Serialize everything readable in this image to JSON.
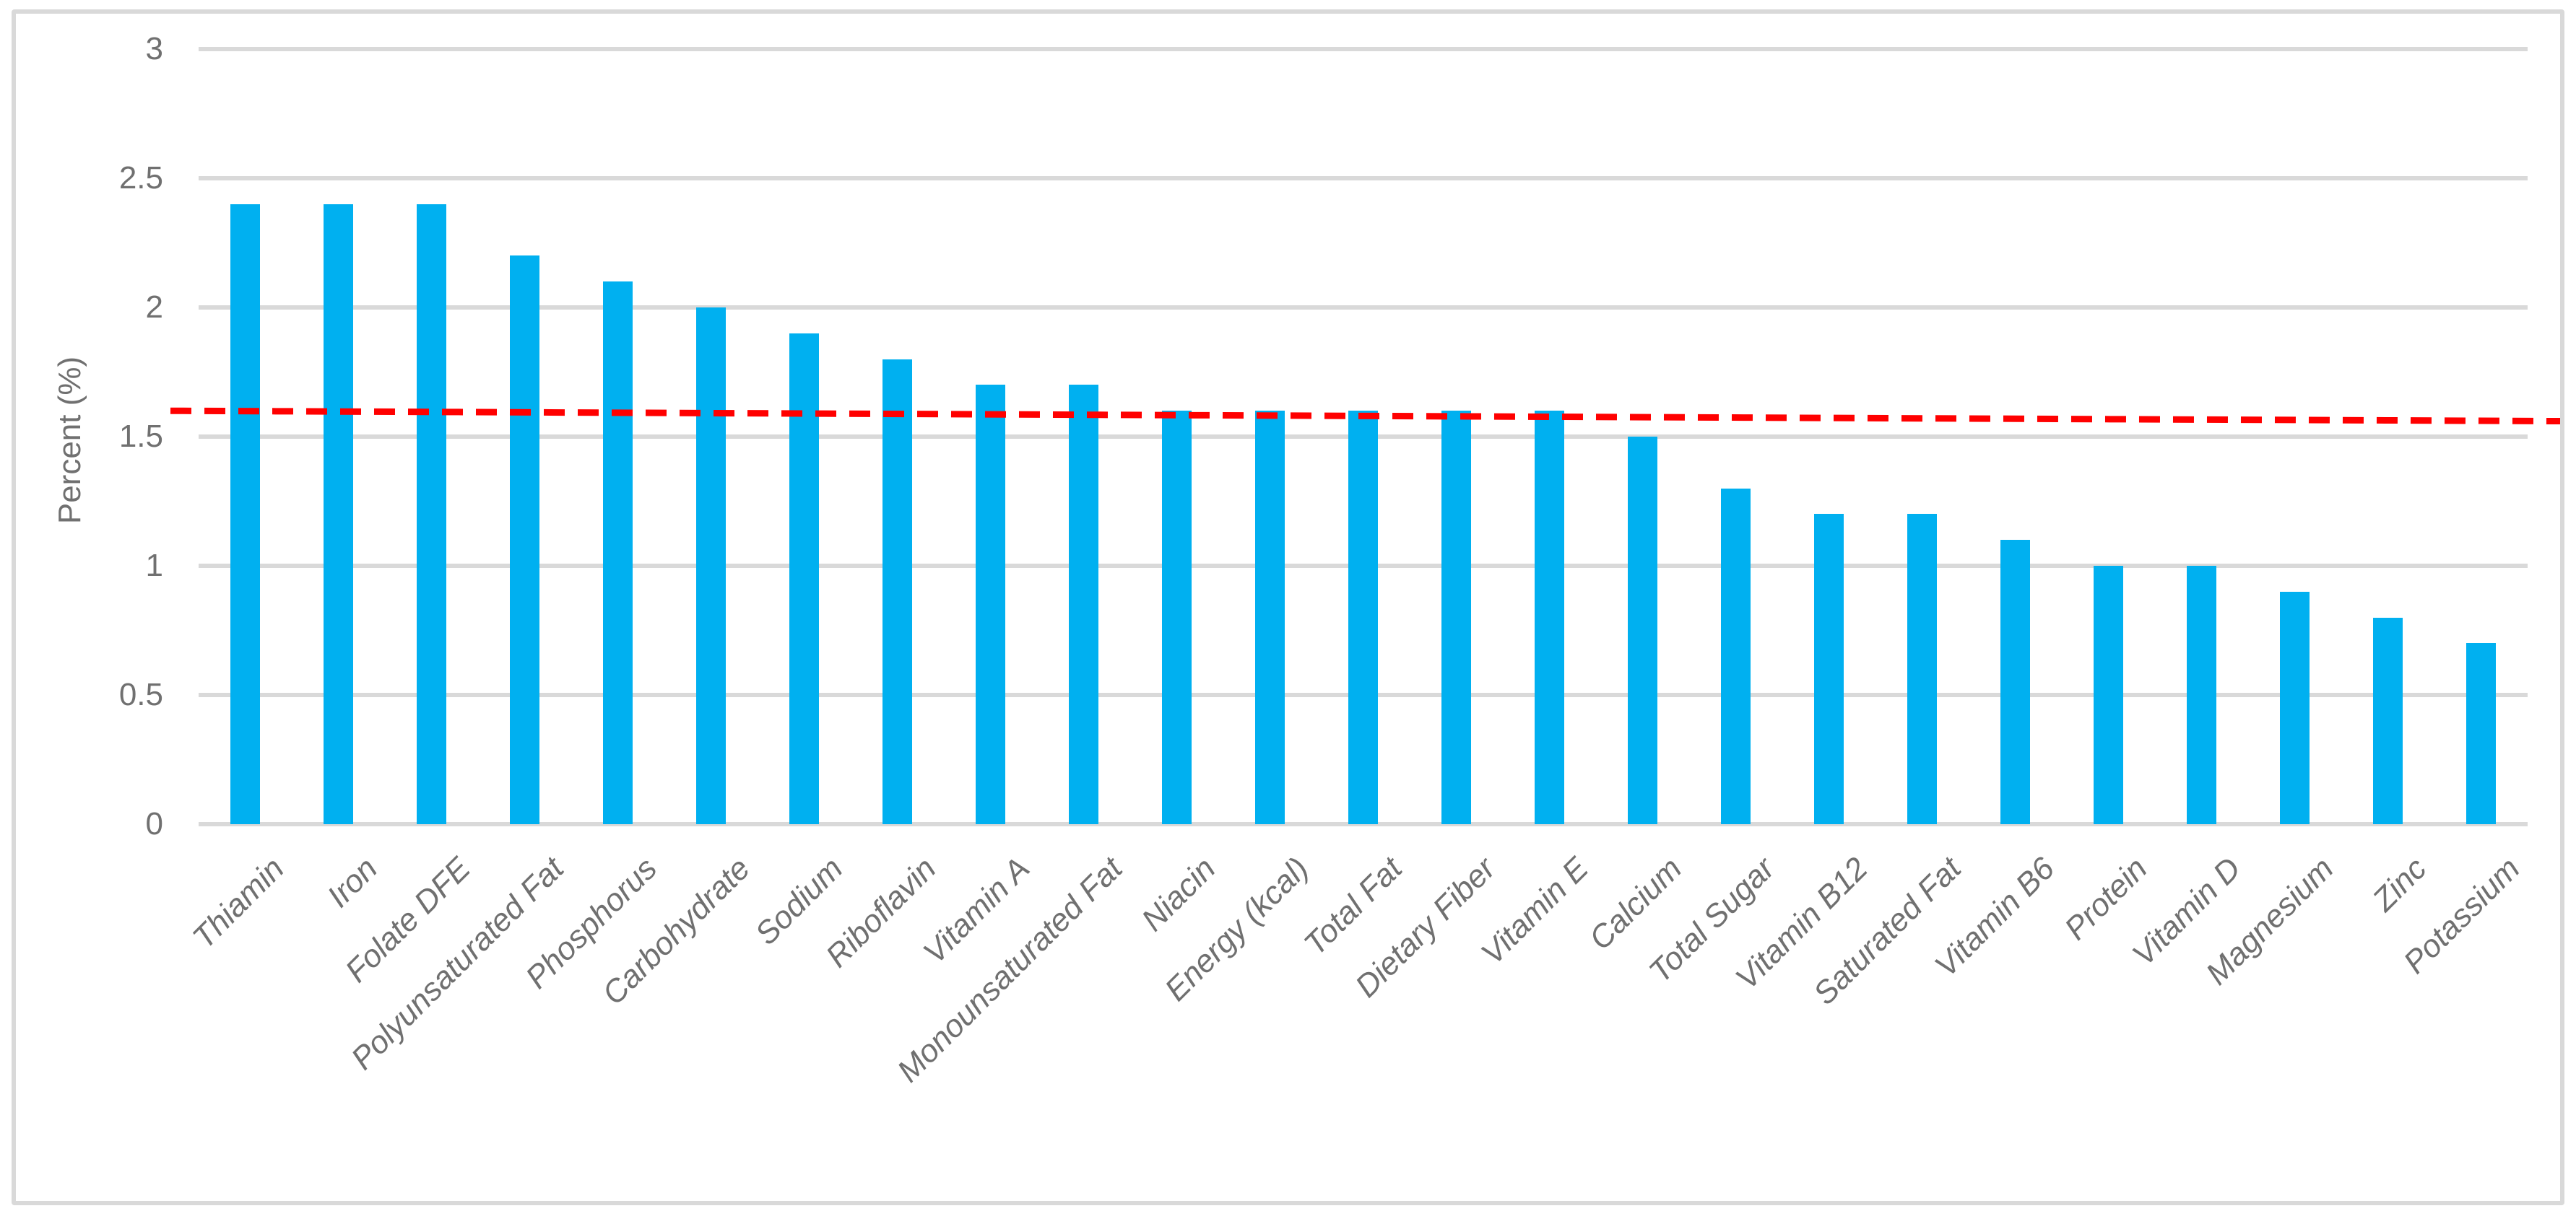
{
  "frame": {
    "border_color": "#D9D9D9",
    "background_color": "#FFFFFF"
  },
  "chart_data": {
    "type": "bar",
    "title": "",
    "xlabel": "",
    "ylabel": "Percent (%)",
    "ylim": [
      0,
      3
    ],
    "ytick_values": [
      0,
      0.5,
      1,
      1.5,
      2,
      2.5,
      3
    ],
    "ytick_labels": [
      "0",
      "0.5",
      "1",
      "1.5",
      "2",
      "2.5",
      "3"
    ],
    "grid": true,
    "legend": false,
    "bar_color": "#00B0F0",
    "gridline_color": "#D9D9D9",
    "axis_text_color": "#707070",
    "categories": [
      "Thiamin",
      "Iron",
      "Folate DFE",
      "Polyunsaturated Fat",
      "Phosphorus",
      "Carbohydrate",
      "Sodium",
      "Riboflavin",
      "Vitamin A",
      "Monounsaturated Fat",
      "Niacin",
      "Energy (kcal)",
      "Total Fat",
      "Dietary Fiber",
      "Vitamin E",
      "Calcium",
      "Total Sugar",
      "Vitamin B12",
      "Saturated Fat",
      "Vitamin B6",
      "Protein",
      "Vitamin D",
      "Magnesium",
      "Zinc",
      "Potassium"
    ],
    "values": [
      2.4,
      2.4,
      2.4,
      2.2,
      2.1,
      2.0,
      1.9,
      1.8,
      1.7,
      1.7,
      1.6,
      1.6,
      1.6,
      1.6,
      1.6,
      1.5,
      1.3,
      1.2,
      1.2,
      1.1,
      1.0,
      1.0,
      0.9,
      0.8,
      0.7
    ],
    "trendline": {
      "type": "linear",
      "style": "dashed",
      "color": "#FF0000",
      "start_value": 1.6,
      "end_value": 1.56
    }
  }
}
